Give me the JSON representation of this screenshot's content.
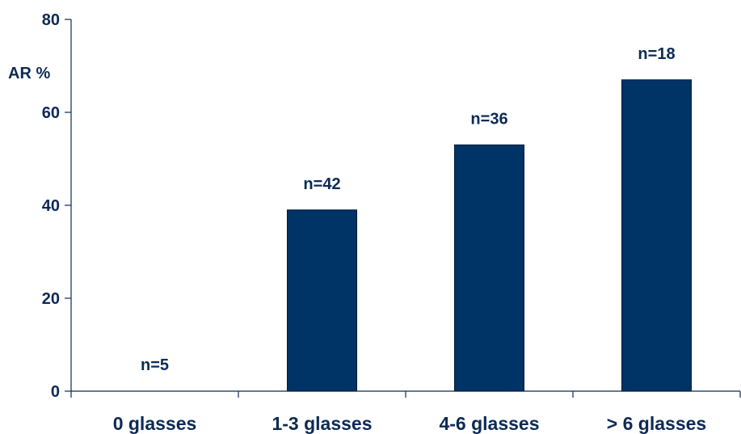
{
  "chart_data": {
    "type": "bar",
    "ylabel": "AR %",
    "ylim": [
      0,
      80
    ],
    "yticks": [
      0,
      20,
      40,
      60,
      80
    ],
    "grid": false,
    "bar_color": "#003366",
    "categories": [
      "0 glasses",
      "1-3 glasses",
      "4-6 glasses",
      "> 6 glasses"
    ],
    "values": [
      0,
      39,
      53,
      67
    ],
    "data_labels": [
      "n=5",
      "n=42",
      "n=36",
      "n=18"
    ]
  }
}
